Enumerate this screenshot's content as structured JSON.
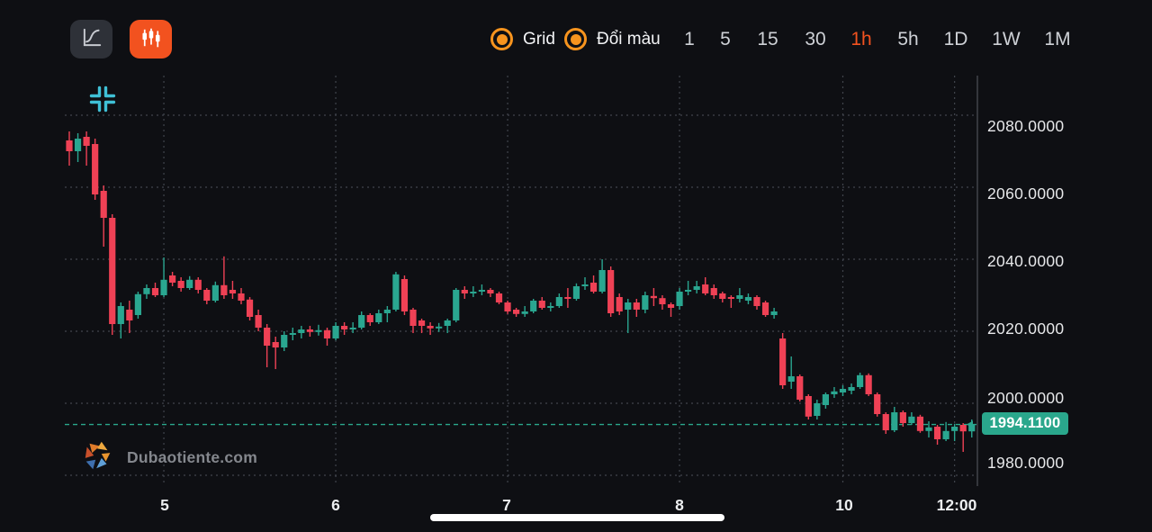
{
  "toolbar": {
    "buttons": [
      {
        "name": "line-chart-tool",
        "icon": "line-chart-icon"
      },
      {
        "name": "candlestick-settings",
        "icon": "candlestick-icon"
      }
    ],
    "toggles": [
      {
        "label": "Grid",
        "state": "on"
      },
      {
        "label": "Đổi màu",
        "state": "on"
      }
    ],
    "timeframes": [
      "1",
      "5",
      "15",
      "30",
      "1h",
      "5h",
      "1D",
      "1W",
      "1M"
    ],
    "selected_timeframe": "1h"
  },
  "icons": {
    "chart_corner": "collapse-icon",
    "tool_primary": "line-chart-icon",
    "tool_secondary": "candlestick-icon"
  },
  "watermark": {
    "text": "Dubaotiente.com"
  },
  "colors": {
    "bg": "#0e0f13",
    "button_bg": "#2e3138",
    "accent_orange": "#f2521f",
    "toggle_orange": "#f7941e",
    "candle_up": "#2aa690",
    "candle_down": "#ef4155",
    "badge_bg": "#2aa78c",
    "price_line": "#2aa78c",
    "grid": "#41454d",
    "axis_line": "#5a5e66",
    "icon_cyan": "#3fc0d6"
  },
  "chart_data": {
    "type": "candlestick",
    "timeframe": "1h",
    "current_price": 1994.11,
    "current_price_label": "1994.1100",
    "price_axis_step": 20,
    "y_axis": [
      {
        "label": "2080.0000",
        "price": 2080,
        "label_center_y": 140
      },
      {
        "label": "2060.0000",
        "price": 2060,
        "label_center_y": 215
      },
      {
        "label": "2040.0000",
        "price": 2040,
        "label_center_y": 290
      },
      {
        "label": "2020.0000",
        "price": 2020,
        "label_center_y": 365
      },
      {
        "label": "2000.0000",
        "price": 2000,
        "label_center_y": 442
      },
      {
        "label": "1980.0000",
        "price": 1980,
        "label_center_y": 514
      }
    ],
    "x_axis": [
      {
        "label": "5",
        "candle_index": 11
      },
      {
        "label": "6",
        "candle_index": 31
      },
      {
        "label": "7",
        "candle_index": 51
      },
      {
        "label": "8",
        "candle_index": 71
      },
      {
        "label": "10",
        "candle_index": 90
      },
      {
        "label": "12:00",
        "candle_index": 103
      }
    ],
    "grid": true,
    "legend": false,
    "candles_ohlc": [
      [
        2073,
        2075.5,
        2066,
        2070
      ],
      [
        2070,
        2075,
        2067,
        2073.5
      ],
      [
        2074,
        2075.5,
        2066,
        2071.5
      ],
      [
        2072,
        2073.5,
        2056.5,
        2058
      ],
      [
        2059,
        2060.5,
        2043.5,
        2051.5
      ],
      [
        2051.5,
        2052.5,
        2019,
        2022
      ],
      [
        2022,
        2028,
        2018,
        2027
      ],
      [
        2026,
        2028.5,
        2019.5,
        2023
      ],
      [
        2024.5,
        2031,
        2023.5,
        2030.3
      ],
      [
        2030.3,
        2033,
        2029,
        2032
      ],
      [
        2032,
        2033.5,
        2029.5,
        2030
      ],
      [
        2030,
        2040.5,
        2029.5,
        2034.3
      ],
      [
        2035.5,
        2036.5,
        2032.5,
        2033.5
      ],
      [
        2034,
        2035,
        2031,
        2032
      ],
      [
        2032,
        2035.3,
        2031.5,
        2034.3
      ],
      [
        2034.3,
        2035,
        2030.5,
        2031.5
      ],
      [
        2031.5,
        2032,
        2027.5,
        2028.5
      ],
      [
        2028.5,
        2033.8,
        2028,
        2032.8
      ],
      [
        2032.8,
        2040.8,
        2029,
        2030
      ],
      [
        2031.5,
        2034,
        2029,
        2030.5
      ],
      [
        2030.5,
        2032,
        2027.5,
        2028.5
      ],
      [
        2028.8,
        2029.5,
        2023,
        2024
      ],
      [
        2024.5,
        2026,
        2020,
        2021
      ],
      [
        2021,
        2022,
        2010,
        2016
      ],
      [
        2017,
        2018.5,
        2009.5,
        2015.5
      ],
      [
        2015.5,
        2020,
        2014.5,
        2019
      ],
      [
        2019,
        2021,
        2017.5,
        2019.5
      ],
      [
        2019.5,
        2021.5,
        2018,
        2020.5
      ],
      [
        2020.5,
        2021.5,
        2018.5,
        2019.8
      ],
      [
        2019.8,
        2021.8,
        2018.8,
        2020.3
      ],
      [
        2020.3,
        2021,
        2016,
        2018
      ],
      [
        2018,
        2022.5,
        2017.5,
        2021.5
      ],
      [
        2021.5,
        2022.5,
        2019,
        2020.5
      ],
      [
        2020.5,
        2022.5,
        2019.5,
        2021
      ],
      [
        2021,
        2025.5,
        2020.5,
        2024.5
      ],
      [
        2024.5,
        2025,
        2021.5,
        2022.5
      ],
      [
        2022.5,
        2026,
        2022,
        2025
      ],
      [
        2025,
        2027,
        2022.5,
        2026
      ],
      [
        2026,
        2036.5,
        2025.5,
        2035.8
      ],
      [
        2034.5,
        2035.5,
        2024.5,
        2025.5
      ],
      [
        2026,
        2026.5,
        2019.5,
        2021.5
      ],
      [
        2023,
        2023.5,
        2019.5,
        2021.5
      ],
      [
        2021.5,
        2022.5,
        2019,
        2020.8
      ],
      [
        2020.8,
        2022.3,
        2019.8,
        2021.3
      ],
      [
        2021.5,
        2023.5,
        2019.5,
        2023
      ],
      [
        2023,
        2032,
        2022.5,
        2031.5
      ],
      [
        2031.5,
        2032.5,
        2029,
        2030.5
      ],
      [
        2030.5,
        2032.5,
        2029.5,
        2031
      ],
      [
        2031,
        2033,
        2030,
        2031.5
      ],
      [
        2031.5,
        2032,
        2029.5,
        2030.5
      ],
      [
        2030.5,
        2031,
        2027.5,
        2028
      ],
      [
        2028,
        2028.5,
        2024.8,
        2025.5
      ],
      [
        2026,
        2026.5,
        2024,
        2024.8
      ],
      [
        2024.8,
        2027,
        2024,
        2025.5
      ],
      [
        2025.5,
        2029,
        2025,
        2028.5
      ],
      [
        2028.5,
        2029.5,
        2026,
        2026.5
      ],
      [
        2026.5,
        2028,
        2025.5,
        2027
      ],
      [
        2027,
        2030.5,
        2026.5,
        2029.5
      ],
      [
        2029.5,
        2032,
        2026.5,
        2029
      ],
      [
        2029,
        2033.3,
        2028.5,
        2032.5
      ],
      [
        2032.5,
        2035,
        2031.5,
        2033
      ],
      [
        2033.5,
        2035.5,
        2030.5,
        2031
      ],
      [
        2031,
        2040,
        2030.5,
        2037
      ],
      [
        2037,
        2038,
        2024,
        2025
      ],
      [
        2029.5,
        2030.5,
        2024.5,
        2025.5
      ],
      [
        2026,
        2029,
        2019.5,
        2028
      ],
      [
        2028,
        2029,
        2024,
        2026
      ],
      [
        2026,
        2031,
        2025,
        2030
      ],
      [
        2029.8,
        2032,
        2027,
        2029.2
      ],
      [
        2029.2,
        2030,
        2026,
        2027.5
      ],
      [
        2027.5,
        2028,
        2024,
        2026.5
      ],
      [
        2027,
        2032,
        2026,
        2031
      ],
      [
        2031,
        2034,
        2030,
        2031.5
      ],
      [
        2031.5,
        2034,
        2030.5,
        2032.5
      ],
      [
        2033,
        2035,
        2030,
        2030.5
      ],
      [
        2032,
        2033,
        2029,
        2030
      ],
      [
        2030.5,
        2031,
        2028,
        2029
      ],
      [
        2029.5,
        2030,
        2026.5,
        2029
      ],
      [
        2029,
        2032,
        2028,
        2030
      ],
      [
        2028.5,
        2030.5,
        2027.5,
        2029.5
      ],
      [
        2029.5,
        2030,
        2026,
        2027
      ],
      [
        2028,
        2028.5,
        2024,
        2024.5
      ],
      [
        2024.5,
        2026.5,
        2023.5,
        2025.5
      ],
      [
        2018,
        2019.5,
        2004,
        2005
      ],
      [
        2006,
        2013,
        2004,
        2007.5
      ],
      [
        2007.5,
        2008,
        2000.5,
        2001
      ],
      [
        2002,
        2002.5,
        1995.5,
        1996.3
      ],
      [
        1996.5,
        2001,
        1995.5,
        2000
      ],
      [
        1999.5,
        2003,
        1998.5,
        2002.5
      ],
      [
        2002.5,
        2004.5,
        2001.5,
        2003.3
      ],
      [
        2003,
        2005,
        2002,
        2004
      ],
      [
        2003.5,
        2005.5,
        2002.5,
        2004.5
      ],
      [
        2004.5,
        2008.5,
        2004,
        2007.8
      ],
      [
        2007.8,
        2008.3,
        2002,
        2002.5
      ],
      [
        2002.5,
        2003,
        1996.3,
        1997
      ],
      [
        1997,
        1997.5,
        1991.5,
        1992.5
      ],
      [
        1992.5,
        1999,
        1992,
        1997.5
      ],
      [
        1997.5,
        1998,
        1993.5,
        1994.5
      ],
      [
        1994.5,
        1997.5,
        1994,
        1996.3
      ],
      [
        1996.3,
        1996.8,
        1991.8,
        1992.3
      ],
      [
        1992.3,
        1995,
        1990.5,
        1993.3
      ],
      [
        1993.5,
        1994,
        1988.5,
        1990
      ],
      [
        1990,
        1994.8,
        1989.5,
        1992.3
      ],
      [
        1992.3,
        1994.3,
        1989.5,
        1993.5
      ],
      [
        1994,
        1994.5,
        1986.5,
        1992.2
      ],
      [
        1992.2,
        1995.5,
        1990.5,
        1994.11
      ]
    ]
  }
}
